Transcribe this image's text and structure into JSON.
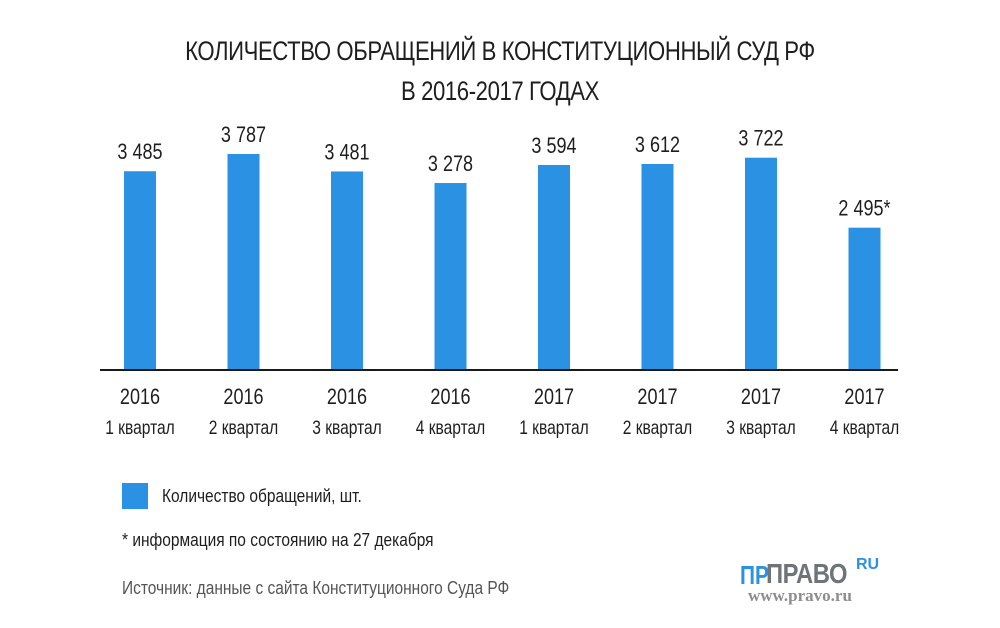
{
  "chart_data": {
    "type": "bar",
    "title": "КОЛИЧЕСТВО ОБРАЩЕНИЙ В КОНСТИТУЦИОННЫЙ СУД РФ",
    "subtitle": "В 2016-2017 ГОДАХ",
    "categories": [
      {
        "year": "2016",
        "quarter": "1 квартал"
      },
      {
        "year": "2016",
        "quarter": "2 квартал"
      },
      {
        "year": "2016",
        "quarter": "3 квартал"
      },
      {
        "year": "2016",
        "quarter": "4 квартал"
      },
      {
        "year": "2017",
        "quarter": "1 квартал"
      },
      {
        "year": "2017",
        "quarter": "2 квартал"
      },
      {
        "year": "2017",
        "quarter": "3 квартал"
      },
      {
        "year": "2017",
        "quarter": "4 квартал"
      }
    ],
    "series": [
      {
        "name": "Количество обращений, шт.",
        "values": [
          3485,
          3787,
          3481,
          3278,
          3594,
          3612,
          3722,
          2495
        ],
        "data_labels": [
          "3 485",
          "3 787",
          "3 481",
          "3 278",
          "3 594",
          "3 612",
          "3 722",
          "2 495*"
        ]
      }
    ],
    "ylim": [
      0,
      4000
    ],
    "grid": false,
    "legend_placement": "bottom-left",
    "colors": {
      "bar": "#2b91e3",
      "axis": "#1a1a1a"
    }
  },
  "footnote": "* информация по состоянию на 27 декабря",
  "source": "Источник: данные с сайта Конституционного Суда РФ",
  "logo": {
    "mark": "ΠΡ",
    "name": "ПРАВО",
    "suffix": "RU",
    "url": "www.pravo.ru"
  }
}
